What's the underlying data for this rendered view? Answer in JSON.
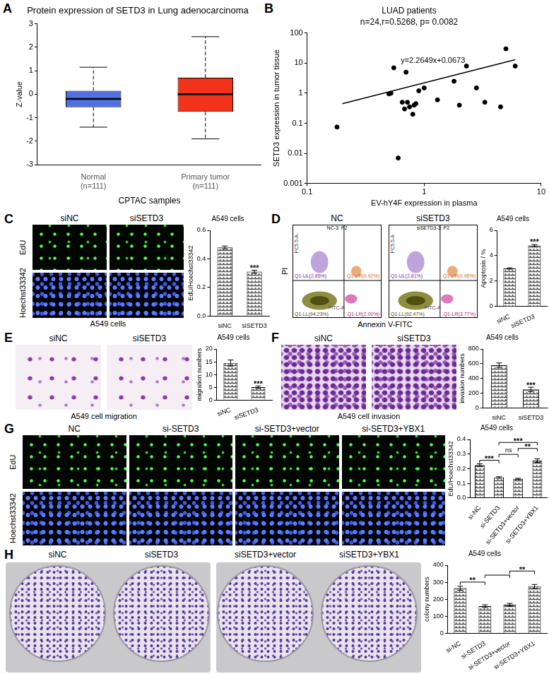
{
  "chart_data": [
    {
      "panel": "A",
      "type": "box",
      "title": "Protein expression of SETD3 in Lung adenocarcinoma",
      "x_label": "CPTAC samples",
      "y_label": "Z-value",
      "categories": [
        [
          "Normal",
          "(n=111)"
        ],
        [
          "Primary tumor",
          "(n=111)"
        ]
      ],
      "boxes": [
        {
          "min": -1.4,
          "q1": -0.55,
          "median": -0.2,
          "q3": 0.15,
          "max": 1.15
        },
        {
          "min": -1.9,
          "q1": -0.75,
          "median": 0.0,
          "q3": 0.7,
          "max": 2.45
        }
      ],
      "colors": [
        "#4f6fe3",
        "#f2331a"
      ],
      "line_style": "dashed",
      "ylim": [
        -3,
        3
      ],
      "yticks": [
        -3,
        -2,
        -1,
        0,
        1,
        2,
        3
      ],
      "grid": false
    },
    {
      "panel": "B",
      "type": "scatter",
      "title": "LUAD patients",
      "subtitle": "n=24,r=0.5268, p= 0.0082",
      "annotation": "y=2.2649x+0.0673",
      "x_label": "EV-hY4F expression in plasma",
      "y_label": "SETD3 expression in tumor tissue",
      "x": [
        0.18,
        0.5,
        0.52,
        0.55,
        0.6,
        0.65,
        0.68,
        0.7,
        0.72,
        0.75,
        0.8,
        0.82,
        0.85,
        0.9,
        1.0,
        1.3,
        1.8,
        2.0,
        2.3,
        2.8,
        3.3,
        4.5,
        5.0,
        6.0
      ],
      "values": [
        0.075,
        0.95,
        1.0,
        7,
        0.007,
        0.5,
        0.3,
        5,
        0.5,
        0.35,
        0.2,
        0.4,
        0.45,
        1.2,
        1.5,
        0.6,
        2.5,
        0.4,
        8,
        1.5,
        0.5,
        0.35,
        30,
        8
      ],
      "fit_line": {
        "x": [
          0.2,
          6
        ],
        "values": [
          0.45,
          13
        ]
      },
      "color": "#000000",
      "marker": "circle",
      "log": true,
      "xlim": [
        0.1,
        10
      ],
      "xticks": [
        0.1,
        1,
        10
      ],
      "ylim": [
        0.001,
        100
      ],
      "yticks": [
        0.001,
        0.01,
        0.1,
        1,
        10,
        100
      ],
      "grid": false
    },
    {
      "type": "bar",
      "title": "A549 cells",
      "y_label": "EdU/Hoechst33342",
      "categories": [
        "siNC",
        "siSETD3"
      ],
      "values": [
        0.48,
        0.31
      ],
      "errors": [
        0.01,
        0.01
      ],
      "significance": [
        {
          "from": 1,
          "to": 1,
          "label": "***"
        }
      ],
      "color": "#555555",
      "ylim": [
        0,
        0.6
      ],
      "yticks": [
        {
          "value": 0,
          "label": "0.0"
        },
        0.2,
        0.4,
        0.6
      ],
      "grid": false
    },
    {
      "type": "bar",
      "title": "A549 cells",
      "y_label": "Apoptosis / %",
      "categories": [
        "siNC",
        "siSETD3"
      ],
      "values": [
        3.0,
        4.8
      ],
      "errors": [
        0.05,
        0.08
      ],
      "significance": [
        {
          "from": 1,
          "to": 1,
          "label": "***"
        }
      ],
      "color": "#555555",
      "ylim": [
        0,
        6
      ],
      "yticks": [
        0,
        2,
        4,
        6
      ],
      "grid": false
    },
    {
      "type": "bar",
      "title": "A549 cells",
      "y_label": "migration numbers",
      "categories": [
        "siNC",
        "siSETD3"
      ],
      "values": [
        14.5,
        5
      ],
      "errors": [
        1.2,
        0.5
      ],
      "significance": [
        {
          "from": 1,
          "to": 1,
          "label": "***"
        }
      ],
      "color": "#555555",
      "ylim": [
        0,
        20
      ],
      "yticks": [
        0,
        5,
        10,
        15,
        20
      ],
      "grid": false
    },
    {
      "type": "bar",
      "title": "A549 cells",
      "y_label": "invasion numbers",
      "categories": [
        "siNC",
        "siSETD3"
      ],
      "values": [
        580,
        250
      ],
      "errors": [
        30,
        30
      ],
      "significance": [
        {
          "from": 1,
          "to": 1,
          "label": "***"
        }
      ],
      "color": "#555555",
      "ylim": [
        0,
        800
      ],
      "yticks": [
        0,
        200,
        400,
        600,
        800
      ],
      "grid": false
    },
    {
      "type": "bar",
      "title": "A549 cells",
      "y_label": "EdU/Hoechst33342",
      "categories": [
        "si-NC",
        "si-SETD3",
        "si-SETD3+vector",
        "si-SETD3+YBX1"
      ],
      "values": [
        0.225,
        0.14,
        0.13,
        0.255
      ],
      "errors": [
        0.008,
        0.005,
        0.004,
        0.012
      ],
      "significance": [
        {
          "from": 0,
          "to": 1,
          "label": "***"
        },
        {
          "from": 1,
          "to": 2,
          "label": "ns"
        },
        {
          "from": 2,
          "to": 3,
          "label": "**"
        },
        {
          "from": 1,
          "to": 3,
          "label": "***"
        }
      ],
      "color": "#555555",
      "ylim": [
        0,
        0.4
      ],
      "yticks": [
        {
          "value": 0,
          "label": "0.0"
        },
        0.1,
        0.2,
        0.3,
        0.4
      ],
      "grid": false
    },
    {
      "type": "bar",
      "title": "A549 cells",
      "y_label": "colony numbers",
      "categories": [
        "si-NC",
        "si-SETD3",
        "si-SETD3+vector",
        "si-SETD3+YBX1"
      ],
      "values": [
        265,
        160,
        168,
        275
      ],
      "errors": [
        12,
        8,
        8,
        12
      ],
      "significance": [
        {
          "from": 0,
          "to": 1,
          "label": "**"
        },
        {
          "from": 1,
          "to": 2
        },
        {
          "from": 2,
          "to": 3,
          "label": "**"
        }
      ],
      "color": "#555555",
      "ylim": [
        0,
        400
      ],
      "yticks": [
        0,
        100,
        200,
        300,
        400
      ],
      "grid": false
    }
  ],
  "images": [
    {
      "panel": "C",
      "kind": "fluorescence",
      "columns": [
        "siNC",
        "siSETD3"
      ],
      "rows": [
        "EdU",
        "Hoechst33342"
      ],
      "caption": "A549 cells"
    },
    {
      "panel": "D",
      "kind": "flow",
      "x_label": "Annexin V-FITC",
      "y_label": "PI",
      "inner_x_label": "FITC-A",
      "inner_y_label": "PC5.5-A",
      "plots": [
        {
          "header": "NC",
          "gate": "NC-3: P2",
          "UL": "Q1-UL(2.85%)",
          "UR": "Q1-UR(0.92%)",
          "LL": "Q1-LL(94.23%)",
          "LR": "Q1-LR(2.00%)"
        },
        {
          "header": "siSETD3",
          "gate": "siSETD3-3: P2",
          "UL": "Q1-UL(2.81%)",
          "UR": "Q1-UR(0.95%)",
          "LL": "Q1-LL(92.47%)",
          "LR": "Q1-LR(3.77%)"
        }
      ]
    },
    {
      "panel": "E",
      "kind": "migration",
      "columns": [
        "siNC",
        "siSETD3"
      ],
      "caption": "A549 cell migration"
    },
    {
      "panel": "F",
      "kind": "invasion",
      "columns": [
        "siNC",
        "siSETD3"
      ],
      "caption": "A549 cell invasion"
    },
    {
      "panel": "G",
      "kind": "fluorescence",
      "columns": [
        "NC",
        "si-SETD3",
        "si-SETD3+vector",
        "si-SETD3+YBX1"
      ],
      "rows": [
        "EdU",
        "Hoechst33342"
      ]
    },
    {
      "panel": "H",
      "kind": "colony",
      "columns": [
        "siNC",
        "siSETD3",
        "siSETD3+vector",
        "siSETD3+YBX1"
      ]
    }
  ]
}
